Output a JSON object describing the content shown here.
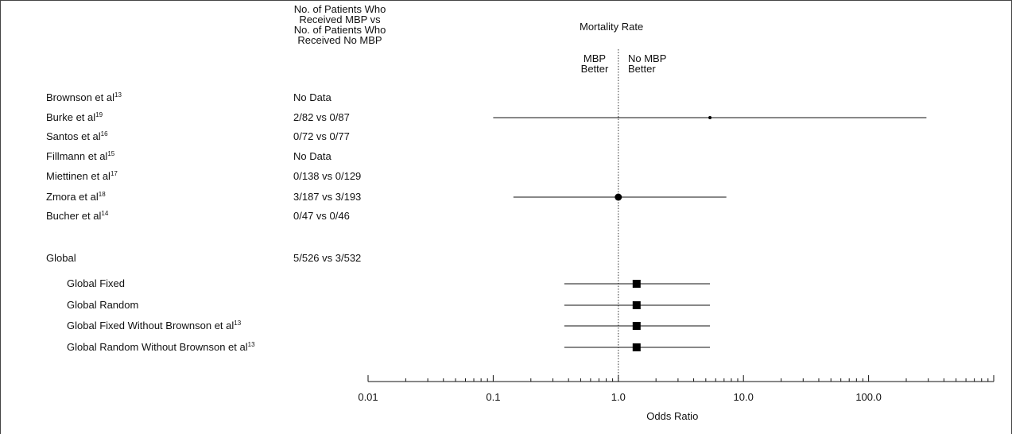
{
  "header": {
    "counts_lines": [
      "No. of Patients Who",
      "Received MBP vs",
      "No. of Patients Who",
      "Received No MBP"
    ],
    "mortality_title": "Mortality Rate",
    "left_favours": [
      "MBP",
      "Better"
    ],
    "right_favours": [
      "No MBP",
      "Better"
    ]
  },
  "chart_data": {
    "type": "forest",
    "x_scale": "log",
    "xlabel": "Odds Ratio",
    "xlim": [
      0.01,
      1000
    ],
    "x_ticks": [
      0.01,
      0.1,
      1.0,
      10.0,
      100.0
    ],
    "x_tick_labels": [
      "0.01",
      "0.1",
      "1.0",
      "10.0",
      "100.0"
    ],
    "reference_line": 1.0,
    "rows": [
      {
        "study": "Brownson et al",
        "ref": "13",
        "counts": "No Data",
        "or": null,
        "lo": null,
        "hi": null,
        "marker": "none"
      },
      {
        "study": "Burke et al",
        "ref": "19",
        "counts": "2/82 vs 0/87",
        "or": 5.4,
        "lo": 0.1,
        "hi": 290,
        "marker": "small-dot"
      },
      {
        "study": "Santos et al",
        "ref": "16",
        "counts": "0/72 vs 0/77",
        "or": null,
        "lo": null,
        "hi": null,
        "marker": "none"
      },
      {
        "study": "Fillmann et al",
        "ref": "15",
        "counts": "No Data",
        "or": null,
        "lo": null,
        "hi": null,
        "marker": "none"
      },
      {
        "study": "Miettinen et al",
        "ref": "17",
        "counts": "0/138 vs 0/129",
        "or": null,
        "lo": null,
        "hi": null,
        "marker": "none"
      },
      {
        "study": "Zmora et al",
        "ref": "18",
        "counts": "3/187 vs 3/193",
        "or": 1.0,
        "lo": 0.145,
        "hi": 7.3,
        "marker": "dot"
      },
      {
        "study": "Bucher et al",
        "ref": "14",
        "counts": "0/47 vs 0/46",
        "or": null,
        "lo": null,
        "hi": null,
        "marker": "none"
      },
      {
        "study": "Global",
        "ref": "",
        "counts": "5/526 vs 3/532",
        "or": null,
        "lo": null,
        "hi": null,
        "marker": "none"
      },
      {
        "study": "Global Fixed",
        "ref": "",
        "counts": "",
        "or": 1.4,
        "lo": 0.37,
        "hi": 5.4,
        "marker": "square"
      },
      {
        "study": "Global Random",
        "ref": "",
        "counts": "",
        "or": 1.4,
        "lo": 0.37,
        "hi": 5.4,
        "marker": "square"
      },
      {
        "study": "Global Fixed Without Brownson et al",
        "ref": "13",
        "counts": "",
        "or": 1.4,
        "lo": 0.37,
        "hi": 5.4,
        "marker": "square"
      },
      {
        "study": "Global Random Without Brownson et al",
        "ref": "13",
        "counts": "",
        "or": 1.4,
        "lo": 0.37,
        "hi": 5.4,
        "marker": "square"
      }
    ]
  }
}
